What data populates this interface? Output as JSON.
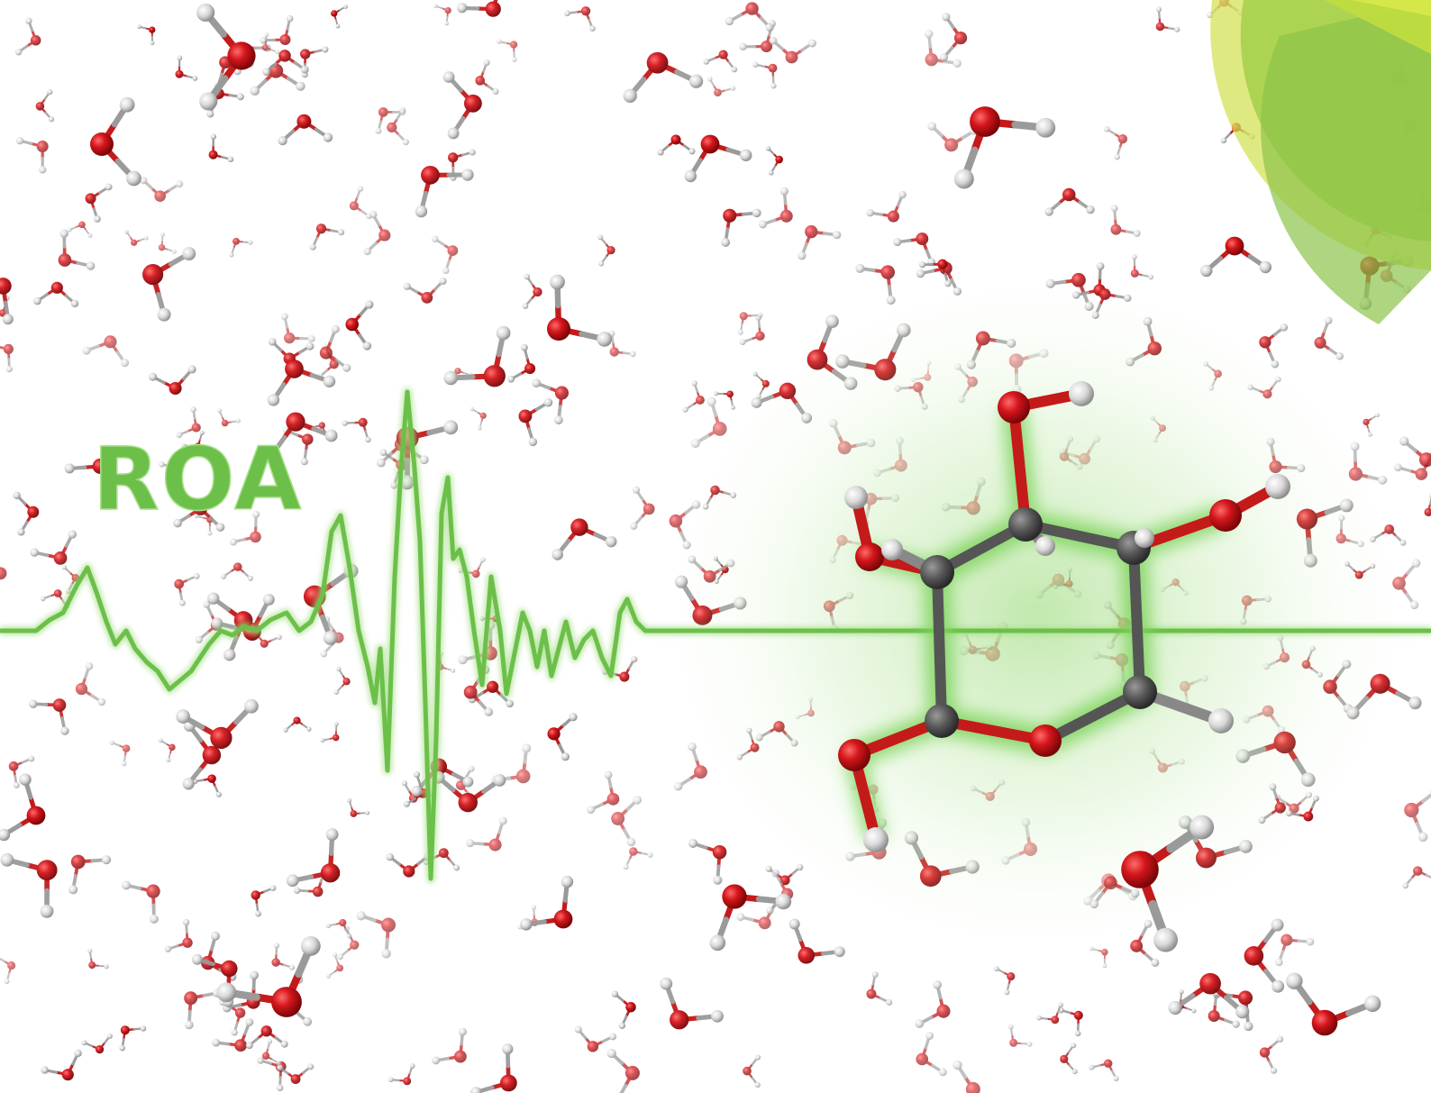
{
  "title": "ROA",
  "colors": {
    "accent": "#6cc04a",
    "glow": "#7bd35a",
    "oxygen": "#d3161b",
    "hydrogen": "#d9d9d9",
    "carbon": "#555555",
    "fan_outer": "#d4e157",
    "fan_inner": "#8bc34a",
    "background": "#ffffff"
  },
  "icons": {
    "water_molecule": "water-molecule-icon",
    "sugar_molecule": "pyranose-ring-molecule-icon",
    "spectrum": "roa-spectrum-line-icon",
    "fan": "radial-fan-graphic-icon"
  }
}
